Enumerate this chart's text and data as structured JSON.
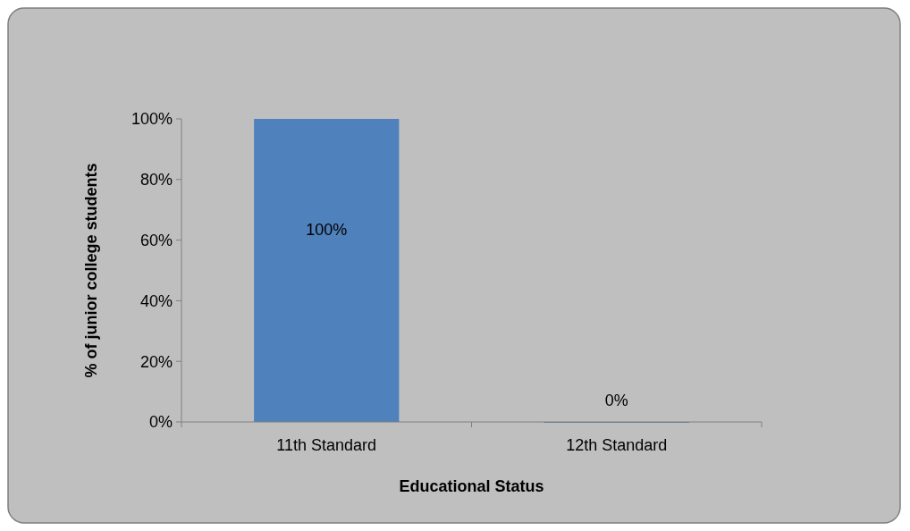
{
  "chart_data": {
    "type": "bar",
    "xlabel": "Educational Status",
    "ylabel": "% of junior college students",
    "categories": [
      "11th Standard",
      "12th Standard"
    ],
    "values": [
      100,
      0
    ],
    "color": "#4f81bd",
    "value_labels": [
      "100%",
      "0%"
    ],
    "ylim": [
      0,
      100
    ],
    "yticks": [
      {
        "value": 0,
        "label": "0%"
      },
      {
        "value": 20,
        "label": "20%"
      },
      {
        "value": 40,
        "label": "40%"
      },
      {
        "value": 60,
        "label": "60%"
      },
      {
        "value": 80,
        "label": "80%"
      },
      {
        "value": 100,
        "label": "100%"
      }
    ],
    "grid": false
  }
}
